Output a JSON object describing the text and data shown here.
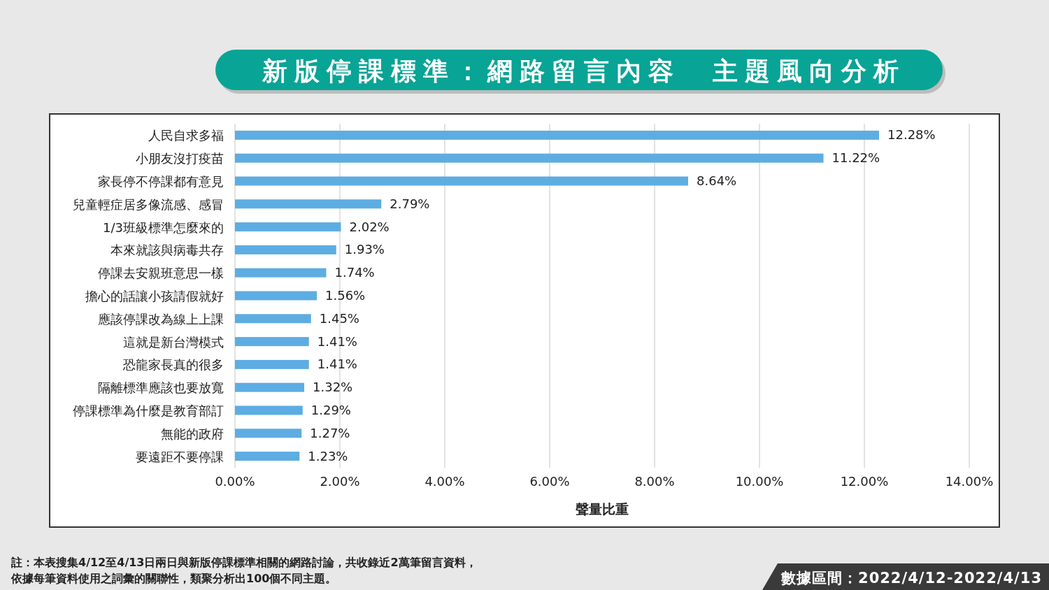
{
  "chart_data": {
    "type": "bar",
    "orientation": "horizontal",
    "title": "新版停課標準：網路留言內容　主題風向分析",
    "xlabel": "聲量比重",
    "categories": [
      "人民自求多福",
      "小朋友沒打疫苗",
      "家長停不停課都有意見",
      "兒童輕症居多像流感、感冒",
      "1/3班級標準怎麼來的",
      "本來就該與病毒共存",
      "停課去安親班意思一樣",
      "擔心的話讓小孩請假就好",
      "應該停課改為線上上課",
      "這就是新台灣模式",
      "恐龍家長真的很多",
      "隔離標準應該也要放寬",
      "停課標準為什麼是教育部訂",
      "無能的政府",
      "要遠距不要停課"
    ],
    "values": [
      12.28,
      11.22,
      8.64,
      2.79,
      2.02,
      1.93,
      1.74,
      1.56,
      1.45,
      1.41,
      1.41,
      1.32,
      1.29,
      1.27,
      1.23
    ],
    "value_labels": [
      "12.28%",
      "11.22%",
      "8.64%",
      "2.79%",
      "2.02%",
      "1.93%",
      "1.74%",
      "1.56%",
      "1.45%",
      "1.41%",
      "1.41%",
      "1.32%",
      "1.29%",
      "1.27%",
      "1.23%"
    ],
    "color": "#5dade2",
    "xlim": [
      0,
      14
    ],
    "xticks": [
      {
        "value": 0,
        "label": "0.00%"
      },
      {
        "value": 2,
        "label": "2.00%"
      },
      {
        "value": 4,
        "label": "4.00%"
      },
      {
        "value": 6,
        "label": "6.00%"
      },
      {
        "value": 8,
        "label": "8.00%"
      },
      {
        "value": 10,
        "label": "10.00%"
      },
      {
        "value": 12,
        "label": "12.00%"
      },
      {
        "value": 14,
        "label": "14.00%"
      }
    ],
    "grid": "x",
    "annotations": [
      "註：本表搜集4/12至4/13日兩日與新版停課標準相關的網路討論，共收錄近2萬筆留言資料，",
      "依據每筆資料使用之詞彙的關聯性，類聚分析出100個不同主題。",
      "數據區間：2022/4/12-2022/4/13"
    ]
  }
}
